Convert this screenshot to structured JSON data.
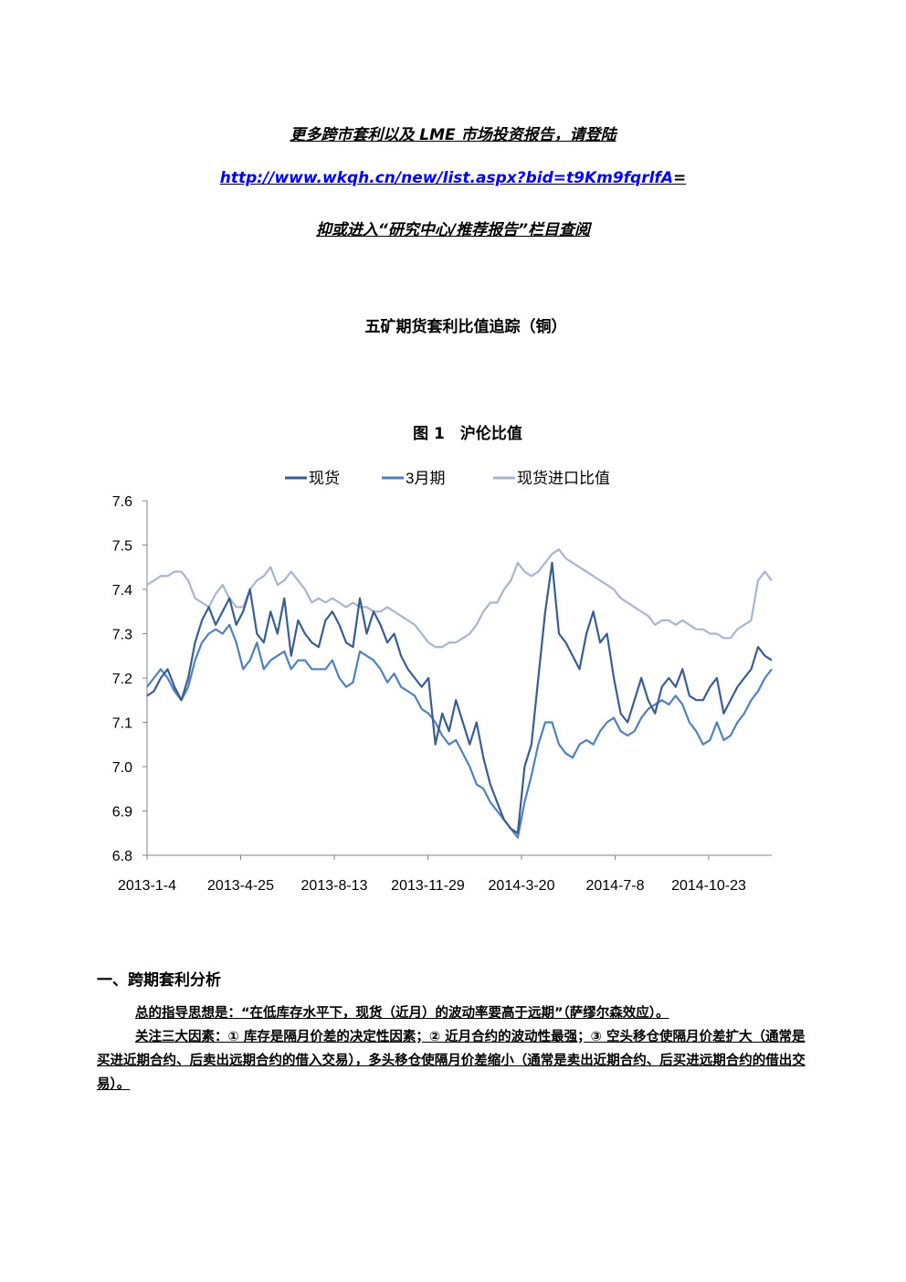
{
  "header": {
    "promo_line1": "更多跨市套利以及 LME 市场投资报告，请登陆",
    "promo_link": "http://www.wkqh.cn/new/list.aspx?bid=t9Km9fqrlfA",
    "promo_link_suffix": "=",
    "promo_line3": "抑或进入“研究中心/推荐报告”栏目查阅"
  },
  "document": {
    "title": "五矿期货套利比值追踪（铜）",
    "figure_title": "图 1　沪伦比值"
  },
  "section": {
    "heading": "一、跨期套利分析",
    "paragraph1": "总的指导思想是：“在低库存水平下，现货（近月）的波动率要高于远期”（萨缪尔森效应）。",
    "paragraph2": "关注三大因素：① 库存是隔月价差的决定性因素；② 近月合约的波动性最强；③ 空头移仓使隔月价差扩大（通常是买进近期合约、后卖出远期合约的借入交易），多头移仓使隔月价差缩小（通常是卖出近期合约、后买进远期合约的借出交易）。"
  },
  "chart_data": {
    "type": "line",
    "title": "",
    "xlabel": "",
    "ylabel": "",
    "ylim": [
      6.8,
      7.6
    ],
    "y_ticks": [
      "7.6",
      "7.5",
      "7.4",
      "7.3",
      "7.2",
      "7.1",
      "7.0",
      "6.9",
      "6.8"
    ],
    "x_ticks": [
      "2013-1-4",
      "2013-4-25",
      "2013-8-13",
      "2013-11-29",
      "2014-3-20",
      "2014-7-8",
      "2014-10-23"
    ],
    "grid": false,
    "legend_position": "top",
    "series": [
      {
        "name": "现货",
        "color": "#3a5d8f",
        "values": [
          7.16,
          7.17,
          7.2,
          7.22,
          7.18,
          7.15,
          7.2,
          7.28,
          7.33,
          7.36,
          7.32,
          7.35,
          7.38,
          7.32,
          7.35,
          7.4,
          7.3,
          7.28,
          7.35,
          7.3,
          7.38,
          7.25,
          7.33,
          7.3,
          7.28,
          7.27,
          7.33,
          7.35,
          7.32,
          7.28,
          7.27,
          7.38,
          7.3,
          7.35,
          7.32,
          7.28,
          7.3,
          7.25,
          7.22,
          7.2,
          7.18,
          7.2,
          7.05,
          7.12,
          7.08,
          7.15,
          7.1,
          7.05,
          7.1,
          7.02,
          6.96,
          6.92,
          6.88,
          6.86,
          6.85,
          7.0,
          7.05,
          7.2,
          7.35,
          7.46,
          7.3,
          7.28,
          7.25,
          7.22,
          7.3,
          7.35,
          7.28,
          7.3,
          7.2,
          7.12,
          7.1,
          7.15,
          7.2,
          7.15,
          7.12,
          7.18,
          7.2,
          7.18,
          7.22,
          7.16,
          7.15,
          7.15,
          7.18,
          7.2,
          7.12,
          7.15,
          7.18,
          7.2,
          7.22,
          7.27,
          7.25,
          7.24
        ]
      },
      {
        "name": "3月期",
        "color": "#4f81bd",
        "values": [
          7.18,
          7.2,
          7.22,
          7.2,
          7.17,
          7.15,
          7.18,
          7.24,
          7.28,
          7.3,
          7.31,
          7.3,
          7.32,
          7.28,
          7.22,
          7.24,
          7.28,
          7.22,
          7.24,
          7.25,
          7.26,
          7.22,
          7.24,
          7.24,
          7.22,
          7.22,
          7.22,
          7.24,
          7.2,
          7.18,
          7.19,
          7.26,
          7.25,
          7.24,
          7.22,
          7.19,
          7.21,
          7.18,
          7.17,
          7.16,
          7.13,
          7.12,
          7.1,
          7.07,
          7.05,
          7.06,
          7.03,
          7.0,
          6.96,
          6.95,
          6.92,
          6.9,
          6.88,
          6.86,
          6.84,
          6.92,
          6.98,
          7.05,
          7.1,
          7.1,
          7.05,
          7.03,
          7.02,
          7.05,
          7.06,
          7.05,
          7.08,
          7.1,
          7.11,
          7.08,
          7.07,
          7.08,
          7.11,
          7.13,
          7.14,
          7.15,
          7.14,
          7.16,
          7.14,
          7.1,
          7.08,
          7.05,
          7.06,
          7.1,
          7.06,
          7.07,
          7.1,
          7.12,
          7.15,
          7.17,
          7.2,
          7.22
        ]
      },
      {
        "name": "现货进口比值",
        "color": "#a7b6cf",
        "values": [
          7.41,
          7.42,
          7.43,
          7.43,
          7.44,
          7.44,
          7.42,
          7.38,
          7.37,
          7.36,
          7.39,
          7.41,
          7.38,
          7.36,
          7.36,
          7.4,
          7.42,
          7.43,
          7.45,
          7.41,
          7.42,
          7.44,
          7.42,
          7.4,
          7.37,
          7.38,
          7.37,
          7.38,
          7.37,
          7.36,
          7.37,
          7.36,
          7.36,
          7.35,
          7.35,
          7.36,
          7.35,
          7.34,
          7.33,
          7.32,
          7.3,
          7.28,
          7.27,
          7.27,
          7.28,
          7.28,
          7.29,
          7.3,
          7.32,
          7.35,
          7.37,
          7.37,
          7.4,
          7.42,
          7.46,
          7.44,
          7.43,
          7.44,
          7.46,
          7.48,
          7.49,
          7.47,
          7.46,
          7.45,
          7.44,
          7.43,
          7.42,
          7.41,
          7.4,
          7.38,
          7.37,
          7.36,
          7.35,
          7.34,
          7.32,
          7.33,
          7.33,
          7.32,
          7.33,
          7.32,
          7.31,
          7.31,
          7.3,
          7.3,
          7.29,
          7.29,
          7.31,
          7.32,
          7.33,
          7.42,
          7.44,
          7.42
        ]
      }
    ]
  }
}
